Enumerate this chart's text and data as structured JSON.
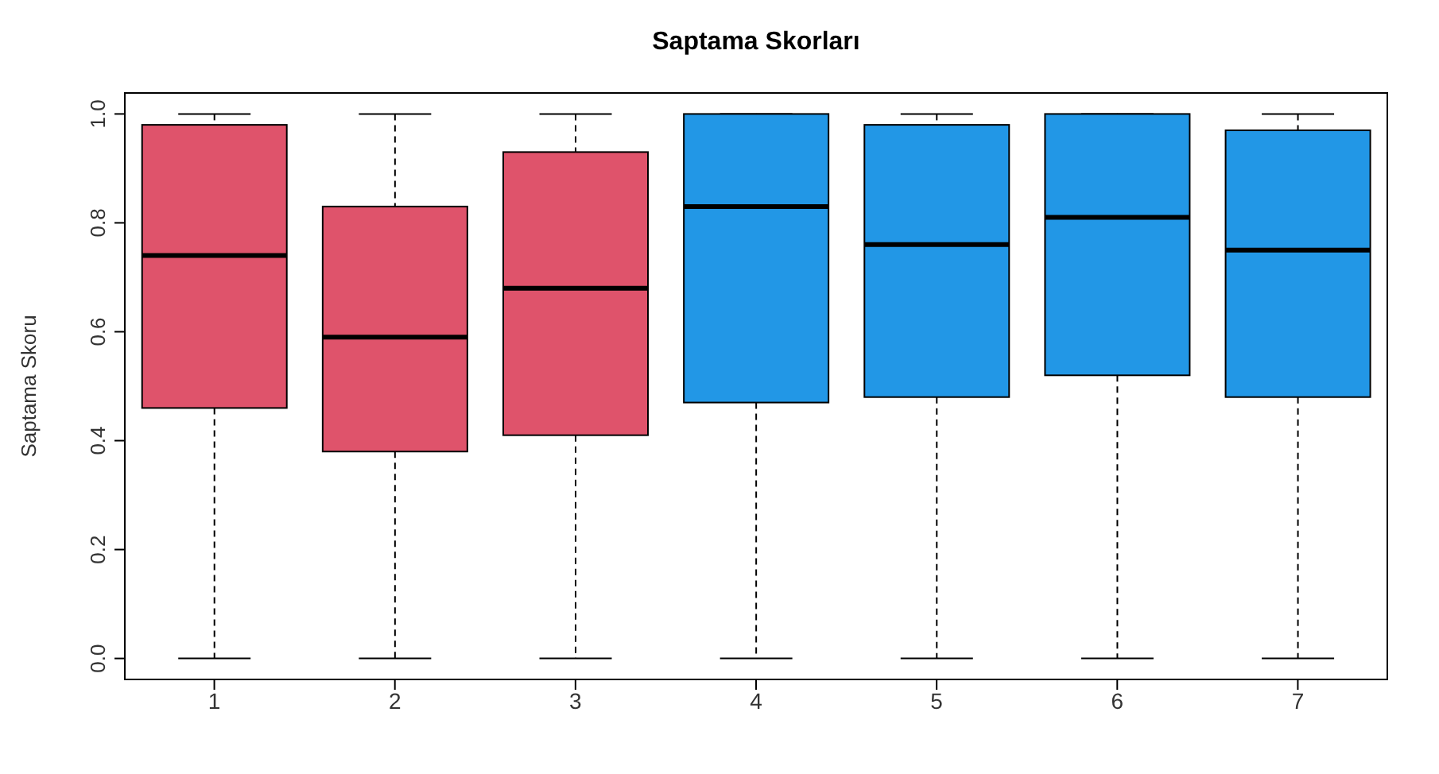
{
  "chart_data": {
    "type": "box",
    "title": "Saptama Skorları",
    "ylabel": "Saptama Skoru",
    "categories": [
      "1",
      "2",
      "3",
      "4",
      "5",
      "6",
      "7"
    ],
    "colors": [
      "#df536b",
      "#df536b",
      "#df536b",
      "#2297e6",
      "#2297e6",
      "#2297e6",
      "#2297e6"
    ],
    "boxes": [
      {
        "low": 0,
        "q1": 0.46,
        "median": 0.74,
        "q3": 0.98,
        "high": 1
      },
      {
        "low": 0,
        "q1": 0.38,
        "median": 0.59,
        "q3": 0.83,
        "high": 1
      },
      {
        "low": 0,
        "q1": 0.41,
        "median": 0.68,
        "q3": 0.93,
        "high": 1
      },
      {
        "low": 0,
        "q1": 0.47,
        "median": 0.83,
        "q3": 1.0,
        "high": 1
      },
      {
        "low": 0,
        "q1": 0.48,
        "median": 0.76,
        "q3": 0.98,
        "high": 1
      },
      {
        "low": 0,
        "q1": 0.52,
        "median": 0.81,
        "q3": 1.0,
        "high": 1
      },
      {
        "low": 0,
        "q1": 0.48,
        "median": 0.75,
        "q3": 0.97,
        "high": 1
      }
    ],
    "ylim": [
      -0.04,
      1.04
    ],
    "yticks": [
      {
        "value": 0,
        "label": "0.0"
      },
      {
        "value": 0.2,
        "label": "0.2"
      },
      {
        "value": 0.4,
        "label": "0.4"
      },
      {
        "value": 0.6,
        "label": "0.6"
      },
      {
        "value": 0.8,
        "label": "0.8"
      },
      {
        "value": 1,
        "label": "1.0"
      }
    ],
    "grid": false,
    "legend": false
  }
}
